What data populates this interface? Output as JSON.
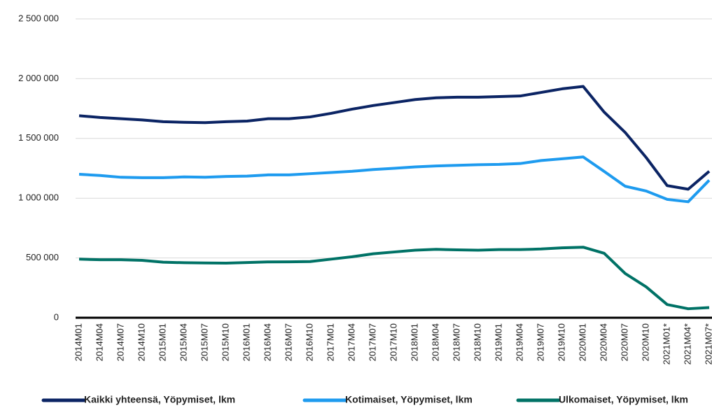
{
  "chart_data": {
    "type": "line",
    "categories": [
      "2014M01",
      "2014M04",
      "2014M07",
      "2014M10",
      "2015M01",
      "2015M04",
      "2015M07",
      "2015M10",
      "2016M01",
      "2016M04",
      "2016M07",
      "2016M10",
      "2017M01",
      "2017M04",
      "2017M07",
      "2017M10",
      "2018M01",
      "2018M04",
      "2018M07",
      "2018M10",
      "2019M01",
      "2019M04",
      "2019M07",
      "2019M10",
      "2020M01",
      "2020M04",
      "2020M07",
      "2020M10",
      "2021M01*",
      "2021M04*",
      "2021M07*"
    ],
    "series": [
      {
        "name": "Kaikki yhteensä, Yöpymiset, lkm",
        "color": "#0b2464",
        "values": [
          1690000,
          1675000,
          1665000,
          1655000,
          1640000,
          1635000,
          1632000,
          1640000,
          1645000,
          1665000,
          1665000,
          1680000,
          1710000,
          1745000,
          1775000,
          1800000,
          1825000,
          1840000,
          1845000,
          1845000,
          1850000,
          1855000,
          1885000,
          1915000,
          1935000,
          1720000,
          1550000,
          1340000,
          1105000,
          1075000,
          1225000
        ]
      },
      {
        "name": "Kotimaiset, Yöpymiset, lkm",
        "color": "#1e9bef",
        "values": [
          1200000,
          1190000,
          1175000,
          1172000,
          1172000,
          1178000,
          1175000,
          1182000,
          1185000,
          1195000,
          1195000,
          1205000,
          1215000,
          1225000,
          1240000,
          1250000,
          1262000,
          1270000,
          1275000,
          1280000,
          1283000,
          1290000,
          1315000,
          1330000,
          1345000,
          1224000,
          1100000,
          1060000,
          990000,
          970000,
          1150000
        ]
      },
      {
        "name": "Ulkomaiset, Yöpymiset, lkm",
        "color": "#007266",
        "values": [
          490000,
          485000,
          485000,
          480000,
          465000,
          460000,
          458000,
          457000,
          462000,
          467000,
          468000,
          470000,
          490000,
          510000,
          535000,
          550000,
          565000,
          572000,
          568000,
          565000,
          570000,
          570000,
          575000,
          585000,
          590000,
          539000,
          370000,
          258000,
          110000,
          75000,
          85000
        ]
      }
    ],
    "ylim": [
      0,
      2500000
    ],
    "yticks": [
      0,
      {
        "value": 500000,
        "label": "500 000"
      },
      {
        "value": 1000000,
        "label": "1 000 000"
      },
      {
        "value": 1500000,
        "label": "1 500 000"
      },
      {
        "value": 2000000,
        "label": "2 000 000"
      },
      {
        "value": 2500000,
        "label": "2 500 000"
      }
    ],
    "grid": true
  }
}
